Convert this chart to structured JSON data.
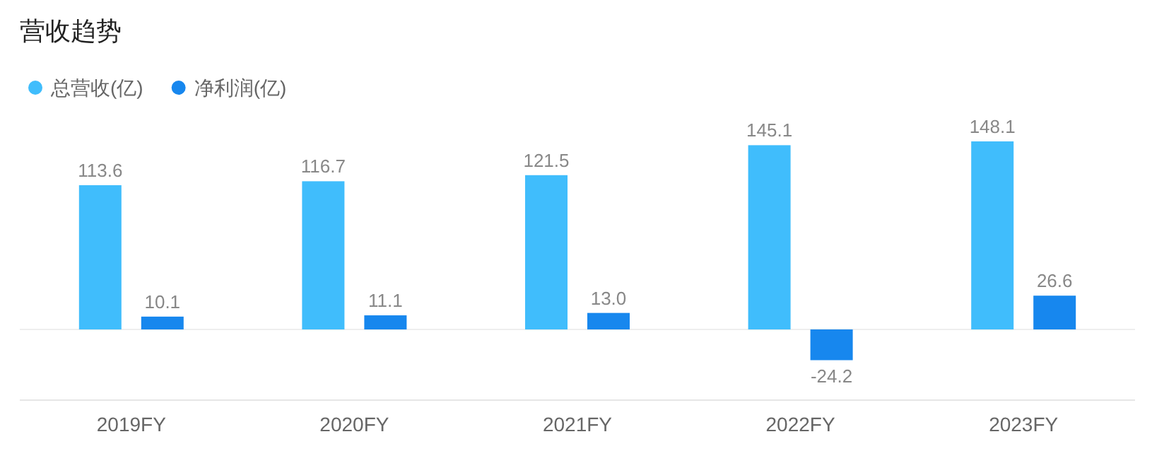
{
  "chart_data": {
    "type": "bar",
    "title": "营收趋势",
    "categories": [
      "2019FY",
      "2020FY",
      "2021FY",
      "2022FY",
      "2023FY"
    ],
    "series": [
      {
        "name": "总营收(亿)",
        "color": "#40bdfc",
        "values": [
          113.6,
          116.7,
          121.5,
          145.1,
          148.1
        ],
        "value_labels": [
          "113.6",
          "116.7",
          "121.5",
          "145.1",
          "148.1"
        ]
      },
      {
        "name": "净利润(亿)",
        "color": "#1787ee",
        "values": [
          10.1,
          11.1,
          13.0,
          -24.2,
          26.6
        ],
        "value_labels": [
          "10.1",
          "11.1",
          "13.0",
          "-24.2",
          "26.6"
        ]
      }
    ],
    "legend": "top left"
  }
}
